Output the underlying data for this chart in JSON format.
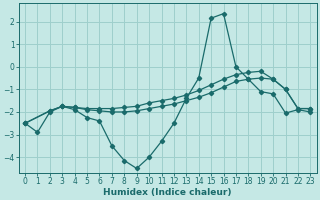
{
  "xlabel": "Humidex (Indice chaleur)",
  "background_color": "#c5e8e5",
  "grid_color": "#9ecfcc",
  "line_color": "#1a6b6b",
  "xlim": [
    -0.5,
    23.5
  ],
  "ylim": [
    -4.7,
    2.8
  ],
  "xticks": [
    0,
    1,
    2,
    3,
    4,
    5,
    6,
    7,
    8,
    9,
    10,
    11,
    12,
    13,
    14,
    15,
    16,
    17,
    18,
    19,
    20,
    21,
    22,
    23
  ],
  "yticks": [
    -4,
    -3,
    -2,
    -1,
    0,
    1,
    2
  ],
  "line1_x": [
    0,
    1,
    2,
    3,
    4,
    5,
    6,
    7,
    8,
    9,
    10,
    11,
    12,
    13,
    14,
    15,
    16,
    17,
    18,
    19,
    20,
    21,
    22,
    23
  ],
  "line1_y": [
    -2.5,
    -2.9,
    -2.0,
    -1.75,
    -1.9,
    -2.25,
    -2.4,
    -3.5,
    -4.15,
    -4.5,
    -4.0,
    -3.3,
    -2.5,
    -1.4,
    -0.5,
    2.15,
    2.35,
    0.0,
    -0.55,
    -1.1,
    -1.2,
    -2.05,
    -1.9,
    -2.0
  ],
  "line2_x": [
    0,
    2,
    3,
    4,
    5,
    6,
    7,
    8,
    9,
    10,
    11,
    12,
    13,
    14,
    15,
    16,
    17,
    18,
    19,
    20,
    21,
    22,
    23
  ],
  "line2_y": [
    -2.5,
    -1.95,
    -1.75,
    -1.8,
    -1.85,
    -1.85,
    -1.85,
    -1.8,
    -1.75,
    -1.6,
    -1.5,
    -1.4,
    -1.25,
    -1.05,
    -0.8,
    -0.55,
    -0.35,
    -0.25,
    -0.2,
    -0.55,
    -1.0,
    -1.85,
    -1.85
  ],
  "line3_x": [
    0,
    2,
    3,
    4,
    5,
    6,
    7,
    8,
    9,
    10,
    11,
    12,
    13,
    14,
    15,
    16,
    17,
    18,
    19,
    20,
    21,
    22,
    23
  ],
  "line3_y": [
    -2.5,
    -1.95,
    -1.75,
    -1.8,
    -1.9,
    -1.95,
    -2.0,
    -2.0,
    -1.95,
    -1.85,
    -1.75,
    -1.65,
    -1.5,
    -1.35,
    -1.15,
    -0.9,
    -0.65,
    -0.55,
    -0.5,
    -0.55,
    -1.0,
    -1.85,
    -1.85
  ]
}
